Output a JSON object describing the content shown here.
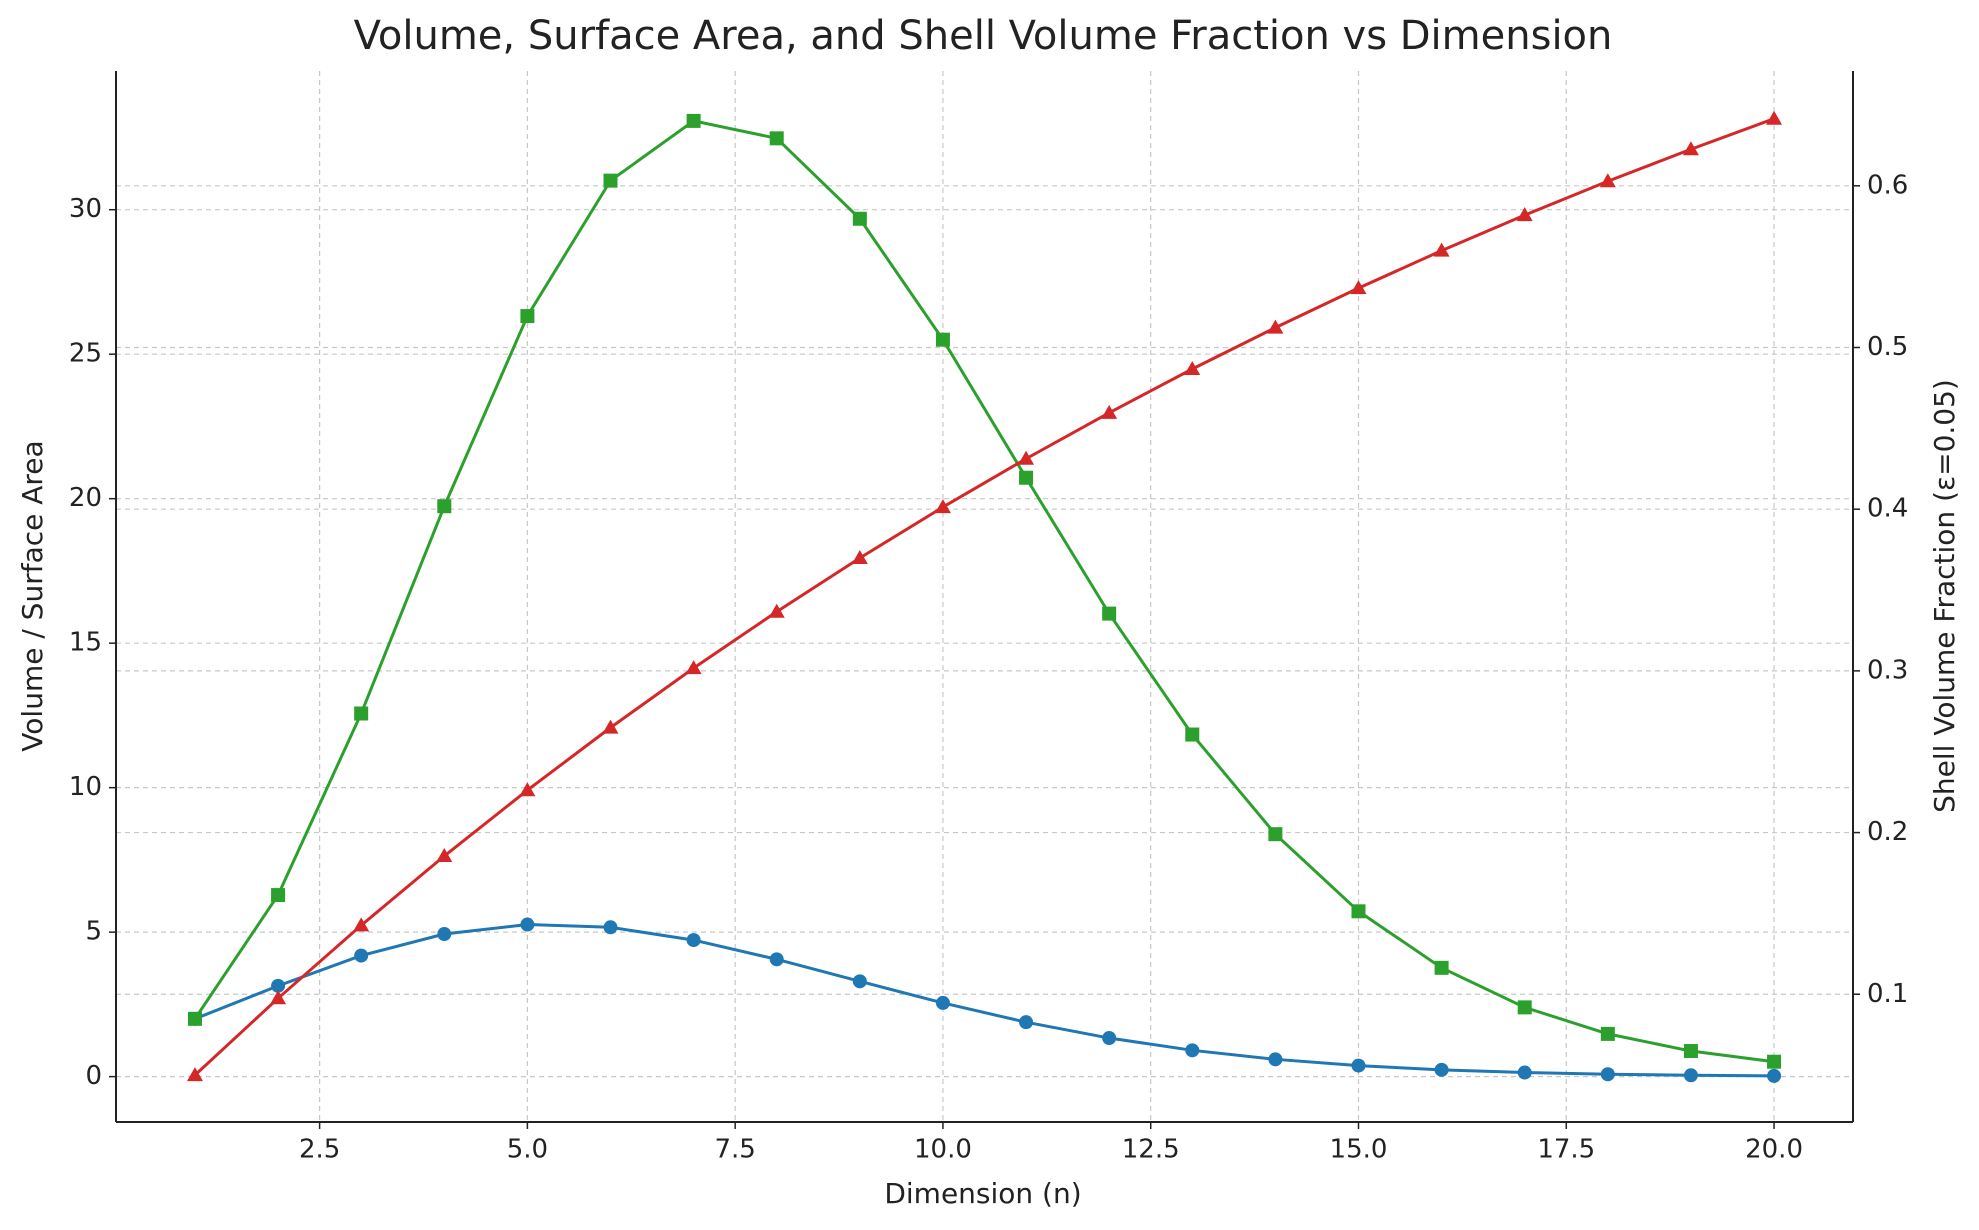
{
  "chart_data": {
    "type": "line",
    "title": "Volume, Surface Area, and Shell Volume Fraction vs Dimension",
    "x_label": "Dimension (n)",
    "y_label": "Volume / Surface Area",
    "y2_label": "Shell Volume Fraction (ε=0.05)",
    "x": [
      1,
      2,
      3,
      4,
      5,
      6,
      7,
      8,
      9,
      10,
      11,
      12,
      13,
      14,
      15,
      16,
      17,
      18,
      19,
      20
    ],
    "series": [
      {
        "color": "#1f77b4",
        "marker": "circle",
        "values": [
          2,
          3.1416,
          4.1888,
          4.9348,
          5.2638,
          5.1677,
          4.7248,
          4.0587,
          3.2985,
          2.5502,
          1.8841,
          1.3353,
          0.9106,
          0.5993,
          0.3814,
          0.2353,
          0.141,
          0.0821,
          0.0466,
          0.0258
        ]
      },
      {
        "color": "#2ca02c",
        "marker": "square",
        "values": [
          2,
          6.2832,
          12.566,
          19.739,
          26.319,
          31.006,
          33.073,
          32.47,
          29.687,
          25.502,
          20.725,
          16.023,
          11.838,
          8.3897,
          5.7216,
          3.7653,
          2.3967,
          1.4786,
          0.8858,
          0.5161
        ]
      },
      {
        "color": "#d62728",
        "marker": "triangle",
        "axis": "y2",
        "values": [
          0.05,
          0.0975,
          0.1426,
          0.1855,
          0.2262,
          0.2649,
          0.3017,
          0.3366,
          0.3698,
          0.4013,
          0.4312,
          0.4596,
          0.4867,
          0.5123,
          0.5367,
          0.5599,
          0.5819,
          0.6028,
          0.6226,
          0.6415
        ]
      }
    ],
    "xlim": [
      0.05,
      20.95
    ],
    "xticks": [
      {
        "value": 2.5,
        "label": "2.5"
      },
      {
        "value": 5,
        "label": "5.0"
      },
      {
        "value": 7.5,
        "label": "7.5"
      },
      {
        "value": 10,
        "label": "10.0"
      },
      {
        "value": 12.5,
        "label": "12.5"
      },
      {
        "value": 15,
        "label": "15.0"
      },
      {
        "value": 17.5,
        "label": "17.5"
      },
      {
        "value": 20,
        "label": "20.0"
      }
    ],
    "ylim": [
      -1.57,
      34.8
    ],
    "yticks": [
      0,
      5,
      10,
      15,
      20,
      25,
      30
    ],
    "y_color": "#1f77b4",
    "y2lim": [
      0.021,
      0.671
    ],
    "y2ticks": [
      0.1,
      0.2,
      0.3,
      0.4,
      0.5,
      0.6
    ],
    "y2_color": "#d62728",
    "grid": true
  }
}
